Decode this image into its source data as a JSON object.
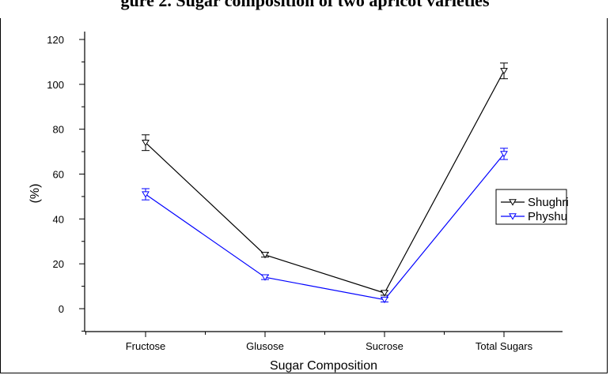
{
  "chart_data": {
    "type": "line",
    "title": "gure 2. Sugar composition of two apricot varieties",
    "xlabel": "Sugar Composition",
    "ylabel": "(%)",
    "categories": [
      "Fructose",
      "Glusose",
      "Sucrose",
      "Total Sugars"
    ],
    "ylim": [
      -10,
      120
    ],
    "yticks": [
      0,
      20,
      40,
      60,
      80,
      100,
      120
    ],
    "ytick_labels": [
      "0",
      "20",
      "40",
      "60",
      "80",
      "100",
      "120"
    ],
    "grid": false,
    "legend_position": "right",
    "series": [
      {
        "name": "Shughri",
        "color": "#000000",
        "marker": "triangle-down-open",
        "values": [
          74,
          24,
          7,
          106
        ],
        "errors": [
          3.5,
          1,
          1,
          3.5
        ]
      },
      {
        "name": "Physhu",
        "color": "#0000ff",
        "marker": "triangle-down-open",
        "values": [
          51,
          14,
          4,
          69
        ],
        "errors": [
          2.5,
          1,
          1,
          2.5
        ]
      }
    ]
  }
}
